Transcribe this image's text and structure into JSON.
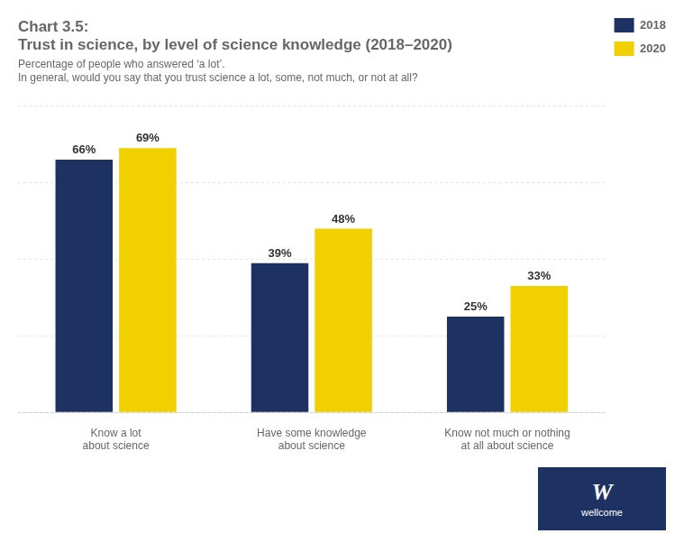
{
  "chart_data": {
    "type": "bar",
    "title": [
      "Chart 3.5:",
      "Trust in science, by level of science knowledge (2018–2020)"
    ],
    "subtitle": [
      "Percentage of people who answered ‘a lot’.",
      "In general, would you say that you trust science a lot, some, not much, or not at all?"
    ],
    "categories": [
      "Know a lot\nabout science",
      "Have some knowledge\nabout science",
      "Know not much or nothing\nat all about science"
    ],
    "series": [
      {
        "name": "2018",
        "color": "#1e3163",
        "values": [
          66,
          39,
          25
        ],
        "value_labels": [
          "66%",
          "39%",
          "25%"
        ]
      },
      {
        "name": "2020",
        "color": "#f0d000",
        "values": [
          69,
          48,
          33
        ],
        "value_labels": [
          "69%",
          "48%",
          "33%"
        ]
      }
    ],
    "ylim": [
      0,
      80
    ],
    "yticks": [
      0,
      20,
      40,
      60,
      80
    ],
    "grid": true,
    "legend": "right",
    "data_labels": true,
    "tick_labels": "x",
    "annotations": [
      "W",
      "wellcome"
    ]
  }
}
